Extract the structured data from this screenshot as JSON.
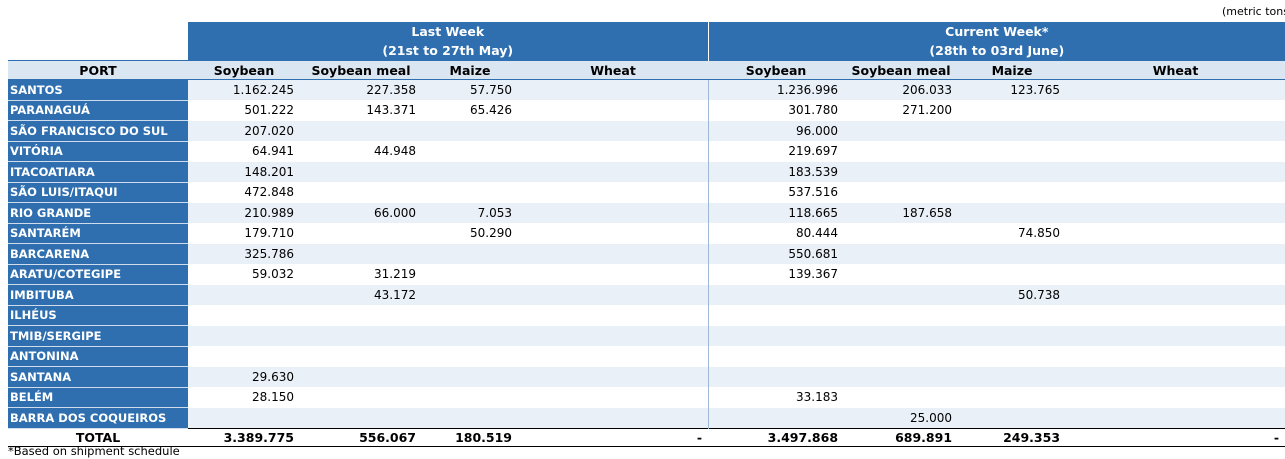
{
  "units": "(metric tons",
  "last_week": {
    "title": "Last Week",
    "range": "(21st to 27th May)"
  },
  "current_week": {
    "title": "Current Week*",
    "range": "(28th to 03rd June)"
  },
  "columns": {
    "port": "PORT",
    "soybean": "Soybean",
    "soybean_meal": "Soybean meal",
    "maize": "Maize",
    "wheat": "Wheat"
  },
  "rows": [
    {
      "port": "SANTOS",
      "lw": [
        "1.162.245",
        "227.358",
        "57.750",
        ""
      ],
      "cw": [
        "1.236.996",
        "206.033",
        "123.765",
        ""
      ]
    },
    {
      "port": "PARANAGUÁ",
      "lw": [
        "501.222",
        "143.371",
        "65.426",
        ""
      ],
      "cw": [
        "301.780",
        "271.200",
        "",
        ""
      ]
    },
    {
      "port": "SÃO FRANCISCO DO SUL",
      "lw": [
        "207.020",
        "",
        "",
        ""
      ],
      "cw": [
        "96.000",
        "",
        "",
        ""
      ]
    },
    {
      "port": "VITÓRIA",
      "lw": [
        "64.941",
        "44.948",
        "",
        ""
      ],
      "cw": [
        "219.697",
        "",
        "",
        ""
      ]
    },
    {
      "port": "ITACOATIARA",
      "lw": [
        "148.201",
        "",
        "",
        ""
      ],
      "cw": [
        "183.539",
        "",
        "",
        ""
      ]
    },
    {
      "port": "SÃO LUIS/ITAQUI",
      "lw": [
        "472.848",
        "",
        "",
        ""
      ],
      "cw": [
        "537.516",
        "",
        "",
        ""
      ]
    },
    {
      "port": "RIO GRANDE",
      "lw": [
        "210.989",
        "66.000",
        "7.053",
        ""
      ],
      "cw": [
        "118.665",
        "187.658",
        "",
        ""
      ]
    },
    {
      "port": "SANTARÉM",
      "lw": [
        "179.710",
        "",
        "50.290",
        ""
      ],
      "cw": [
        "80.444",
        "",
        "74.850",
        ""
      ]
    },
    {
      "port": "BARCARENA",
      "lw": [
        "325.786",
        "",
        "",
        ""
      ],
      "cw": [
        "550.681",
        "",
        "",
        ""
      ]
    },
    {
      "port": "ARATU/COTEGIPE",
      "lw": [
        "59.032",
        "31.219",
        "",
        ""
      ],
      "cw": [
        "139.367",
        "",
        "",
        ""
      ]
    },
    {
      "port": "IMBITUBA",
      "lw": [
        "",
        "43.172",
        "",
        ""
      ],
      "cw": [
        "",
        "",
        "50.738",
        ""
      ]
    },
    {
      "port": "ILHÉUS",
      "lw": [
        "",
        "",
        "",
        ""
      ],
      "cw": [
        "",
        "",
        "",
        ""
      ]
    },
    {
      "port": "TMIB/SERGIPE",
      "lw": [
        "",
        "",
        "",
        ""
      ],
      "cw": [
        "",
        "",
        "",
        ""
      ]
    },
    {
      "port": "ANTONINA",
      "lw": [
        "",
        "",
        "",
        ""
      ],
      "cw": [
        "",
        "",
        "",
        ""
      ]
    },
    {
      "port": "SANTANA",
      "lw": [
        "29.630",
        "",
        "",
        ""
      ],
      "cw": [
        "",
        "",
        "",
        ""
      ]
    },
    {
      "port": "BELÉM",
      "lw": [
        "28.150",
        "",
        "",
        ""
      ],
      "cw": [
        "33.183",
        "",
        "",
        ""
      ]
    },
    {
      "port": "BARRA DOS COQUEIROS",
      "lw": [
        "",
        "",
        "",
        ""
      ],
      "cw": [
        "",
        "25.000",
        "",
        ""
      ]
    }
  ],
  "total": {
    "label": "TOTAL",
    "lw": [
      "3.389.775",
      "556.067",
      "180.519",
      "-"
    ],
    "cw": [
      "3.497.868",
      "689.891",
      "249.353",
      "-"
    ]
  },
  "footnote": "*Based on shipment schedule",
  "colors": {
    "header_blue": "#2f6fb0",
    "band_light": "#eaf0f8",
    "column_header_bg": "#dbe6f3"
  }
}
